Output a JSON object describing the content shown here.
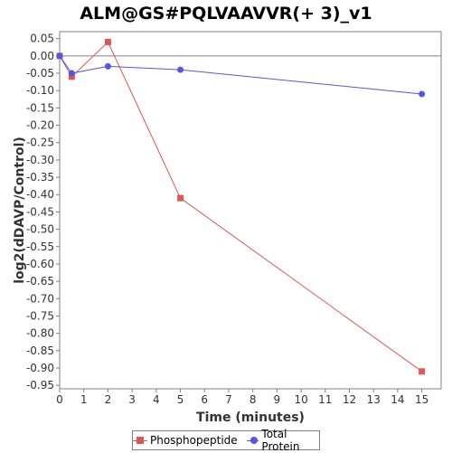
{
  "chart_data": {
    "type": "line",
    "title": "ALM@GS#PQLVAAVVR(+ 3)_v1",
    "xlabel": "Time (minutes)",
    "ylabel": "log2(dDAVP/Control)",
    "xlim": [
      0,
      15.8
    ],
    "ylim": [
      -0.96,
      0.07
    ],
    "xticks": [
      0,
      1,
      2,
      3,
      4,
      5,
      6,
      7,
      8,
      9,
      10,
      11,
      12,
      13,
      14,
      15
    ],
    "yticks": [
      0.05,
      0.0,
      -0.05,
      -0.1,
      -0.15,
      -0.2,
      -0.25,
      -0.3,
      -0.35,
      -0.4,
      -0.45,
      -0.5,
      -0.55,
      -0.6,
      -0.65,
      -0.7,
      -0.75,
      -0.8,
      -0.85,
      -0.9,
      -0.95
    ],
    "ytick_labels": [
      "0.05",
      "0.00",
      "-0.05",
      "-0.10",
      "-0.15",
      "-0.20",
      "-0.25",
      "-0.30",
      "-0.35",
      "-0.40",
      "-0.45",
      "-0.50",
      "-0.55",
      "-0.60",
      "-0.65",
      "-0.70",
      "-0.75",
      "-0.80",
      "-0.85",
      "-0.90",
      "-0.95"
    ],
    "grid": false,
    "zero_line": true,
    "legend_position": "bottom",
    "series": [
      {
        "name": "Phosphopeptide",
        "color": "#e05555",
        "marker": "square",
        "x": [
          0,
          0.5,
          2,
          5,
          15
        ],
        "y": [
          0.0,
          -0.06,
          0.04,
          -0.41,
          -0.91
        ]
      },
      {
        "name": "Total Protein",
        "color": "#5555e8",
        "marker": "circle",
        "x": [
          0,
          0.5,
          2,
          5,
          15
        ],
        "y": [
          0.0,
          -0.05,
          -0.03,
          -0.04,
          -0.11
        ]
      }
    ]
  }
}
